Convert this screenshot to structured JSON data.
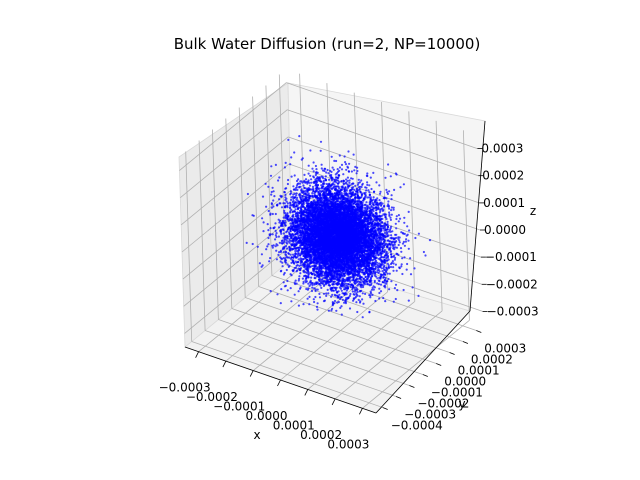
{
  "chart_data": {
    "type": "scatter",
    "projection": "3d",
    "title": "Bulk Water Diffusion (run=2, NP=10000)",
    "xlabel": "x",
    "ylabel": "y",
    "zlabel": "z",
    "xlim": [
      -0.00035,
      0.00035
    ],
    "ylim": [
      -0.00045,
      0.00035
    ],
    "zlim": [
      -0.00035,
      0.00035
    ],
    "x_ticks": [
      -0.0003,
      -0.0002,
      -0.0001,
      0.0,
      0.0001,
      0.0002,
      0.0003
    ],
    "x_tick_labels": [
      "−0.0003",
      "−0.0002",
      "−0.0001",
      "0.0000",
      "0.0001",
      "0.0002",
      "0.0003"
    ],
    "y_ticks": [
      -0.0004,
      -0.0003,
      -0.0002,
      -0.0001,
      0.0,
      0.0001,
      0.0002,
      0.0003
    ],
    "y_tick_labels": [
      "−0.0004",
      "−0.0003",
      "−0.0002",
      "−0.0001",
      "0.0000",
      "0.0001",
      "0.0002",
      "0.0003"
    ],
    "z_ticks": [
      -0.0003,
      -0.0002,
      -0.0001,
      0.0,
      0.0001,
      0.0002,
      0.0003
    ],
    "z_tick_labels": [
      "−0.0003",
      "−0.0002",
      "−0.0001",
      "0.0000",
      "0.0001",
      "0.0002",
      "0.0003"
    ],
    "series": [
      {
        "marker_color": "#0000ff",
        "marker_alpha": 0.7,
        "n_points": 10000,
        "distribution": "isotropic gaussian centered at origin",
        "std_estimate": 8e-05
      }
    ],
    "grid": true
  }
}
